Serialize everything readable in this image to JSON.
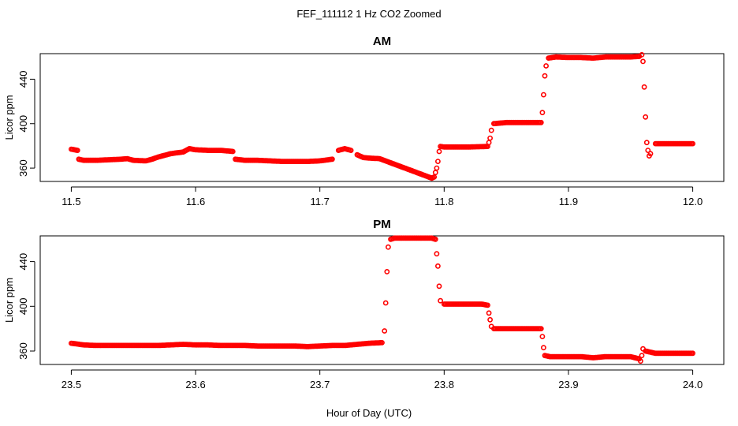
{
  "figure": {
    "title": "FEF_111112  1 Hz CO2 Zoomed",
    "xlabel": "Hour of Day (UTC)"
  },
  "colors": {
    "points": "#ff0000",
    "axis": "#000000",
    "background": "#ffffff"
  },
  "chart_data": [
    {
      "type": "scatter",
      "title": "AM",
      "xlabel": "",
      "ylabel": "Licor ppm",
      "xlim": [
        11.475,
        12.025
      ],
      "ylim": [
        348,
        463
      ],
      "xticks": [
        11.5,
        11.6,
        11.7,
        11.8,
        11.9,
        12.0
      ],
      "xtick_labels": [
        "11.5",
        "11.6",
        "11.7",
        "11.8",
        "11.9",
        "12.0"
      ],
      "yticks": [
        360,
        400,
        440
      ],
      "ytick_labels": [
        "360",
        "400",
        "440"
      ],
      "grid": false,
      "series": [
        {
          "marker": "open-circle",
          "color": "#ff0000",
          "points": [
            [
              11.5,
              377
            ],
            [
              11.505,
              376
            ],
            [
              11.506,
              368
            ],
            [
              11.51,
              367
            ],
            [
              11.52,
              367
            ],
            [
              11.53,
              367.5
            ],
            [
              11.54,
              368
            ],
            [
              11.545,
              368.5
            ],
            [
              11.55,
              367
            ],
            [
              11.56,
              366.5
            ],
            [
              11.565,
              368
            ],
            [
              11.57,
              370
            ],
            [
              11.58,
              373
            ],
            [
              11.59,
              374.5
            ],
            [
              11.595,
              377.5
            ],
            [
              11.6,
              376.5
            ],
            [
              11.61,
              376
            ],
            [
              11.62,
              376
            ],
            [
              11.63,
              375
            ],
            [
              11.632,
              368
            ],
            [
              11.64,
              367
            ],
            [
              11.65,
              367
            ],
            [
              11.66,
              366.5
            ],
            [
              11.67,
              366
            ],
            [
              11.68,
              366
            ],
            [
              11.69,
              366
            ],
            [
              11.7,
              366.5
            ],
            [
              11.71,
              368
            ],
            [
              11.715,
              376
            ],
            [
              11.72,
              377.5
            ],
            [
              11.725,
              376
            ],
            [
              11.73,
              372
            ],
            [
              11.735,
              369.5
            ],
            [
              11.74,
              369
            ],
            [
              11.748,
              368.5
            ],
            [
              11.79,
              351
            ],
            [
              11.792,
              352
            ],
            [
              11.793,
              356
            ],
            [
              11.794,
              360
            ],
            [
              11.795,
              366
            ],
            [
              11.796,
              375
            ],
            [
              11.797,
              379.5
            ],
            [
              11.8,
              379
            ],
            [
              11.81,
              379
            ],
            [
              11.82,
              379
            ],
            [
              11.835,
              379.5
            ],
            [
              11.836,
              383
            ],
            [
              11.837,
              387
            ],
            [
              11.838,
              394
            ],
            [
              11.84,
              400
            ],
            [
              11.85,
              401
            ],
            [
              11.86,
              401
            ],
            [
              11.87,
              401
            ],
            [
              11.878,
              401
            ],
            [
              11.879,
              410
            ],
            [
              11.88,
              426
            ],
            [
              11.881,
              443
            ],
            [
              11.882,
              452
            ],
            [
              11.884,
              459
            ],
            [
              11.89,
              460
            ],
            [
              11.9,
              459.5
            ],
            [
              11.91,
              459.5
            ],
            [
              11.92,
              459
            ],
            [
              11.93,
              460
            ],
            [
              11.94,
              460
            ],
            [
              11.95,
              460
            ],
            [
              11.957,
              460.5
            ],
            [
              11.959,
              462
            ],
            [
              11.96,
              456
            ],
            [
              11.961,
              433
            ],
            [
              11.962,
              406
            ],
            [
              11.963,
              383
            ],
            [
              11.964,
              376
            ],
            [
              11.965,
              371
            ],
            [
              11.966,
              373
            ],
            [
              11.97,
              382
            ],
            [
              11.98,
              382
            ],
            [
              11.99,
              382
            ],
            [
              12.0,
              382
            ]
          ]
        }
      ]
    },
    {
      "type": "scatter",
      "title": "PM",
      "xlabel": "",
      "ylabel": "Licor ppm",
      "xlim": [
        23.475,
        24.025
      ],
      "ylim": [
        348,
        463
      ],
      "xticks": [
        23.5,
        23.6,
        23.7,
        23.8,
        23.9,
        24.0
      ],
      "xtick_labels": [
        "23.5",
        "23.6",
        "23.7",
        "23.8",
        "23.9",
        "24.0"
      ],
      "yticks": [
        360,
        400,
        440
      ],
      "ytick_labels": [
        "360",
        "400",
        "440"
      ],
      "grid": false,
      "series": [
        {
          "marker": "open-circle",
          "color": "#ff0000",
          "points": [
            [
              23.5,
              367
            ],
            [
              23.51,
              365.5
            ],
            [
              23.52,
              365
            ],
            [
              23.53,
              365
            ],
            [
              23.54,
              365
            ],
            [
              23.55,
              365
            ],
            [
              23.56,
              365
            ],
            [
              23.57,
              365
            ],
            [
              23.58,
              365.5
            ],
            [
              23.59,
              366
            ],
            [
              23.6,
              365.5
            ],
            [
              23.61,
              365.5
            ],
            [
              23.62,
              365
            ],
            [
              23.63,
              365
            ],
            [
              23.64,
              365
            ],
            [
              23.65,
              364.5
            ],
            [
              23.66,
              364.5
            ],
            [
              23.67,
              364.5
            ],
            [
              23.68,
              364.5
            ],
            [
              23.69,
              364
            ],
            [
              23.7,
              364.5
            ],
            [
              23.71,
              365
            ],
            [
              23.72,
              365
            ],
            [
              23.73,
              366
            ],
            [
              23.74,
              367
            ],
            [
              23.75,
              367.5
            ],
            [
              23.752,
              378
            ],
            [
              23.753,
              403
            ],
            [
              23.754,
              431
            ],
            [
              23.755,
              453
            ],
            [
              23.757,
              460
            ],
            [
              23.76,
              461
            ],
            [
              23.77,
              461
            ],
            [
              23.78,
              461
            ],
            [
              23.79,
              461
            ],
            [
              23.793,
              460
            ],
            [
              23.794,
              447
            ],
            [
              23.795,
              436
            ],
            [
              23.796,
              418
            ],
            [
              23.797,
              405
            ],
            [
              23.8,
              402
            ],
            [
              23.81,
              402
            ],
            [
              23.82,
              402
            ],
            [
              23.83,
              402
            ],
            [
              23.835,
              401
            ],
            [
              23.836,
              394
            ],
            [
              23.837,
              388
            ],
            [
              23.838,
              382
            ],
            [
              23.84,
              380
            ],
            [
              23.85,
              380
            ],
            [
              23.86,
              380
            ],
            [
              23.87,
              380
            ],
            [
              23.878,
              380
            ],
            [
              23.879,
              373
            ],
            [
              23.88,
              363
            ],
            [
              23.881,
              356
            ],
            [
              23.885,
              355
            ],
            [
              23.89,
              355
            ],
            [
              23.9,
              355
            ],
            [
              23.91,
              355
            ],
            [
              23.92,
              354
            ],
            [
              23.93,
              355
            ],
            [
              23.94,
              355
            ],
            [
              23.95,
              355
            ],
            [
              23.957,
              353
            ],
            [
              23.958,
              351
            ],
            [
              23.959,
              356
            ],
            [
              23.96,
              362
            ],
            [
              23.962,
              360
            ],
            [
              23.97,
              358
            ],
            [
              23.98,
              358
            ],
            [
              23.99,
              358
            ],
            [
              24.0,
              358
            ]
          ]
        }
      ]
    }
  ]
}
